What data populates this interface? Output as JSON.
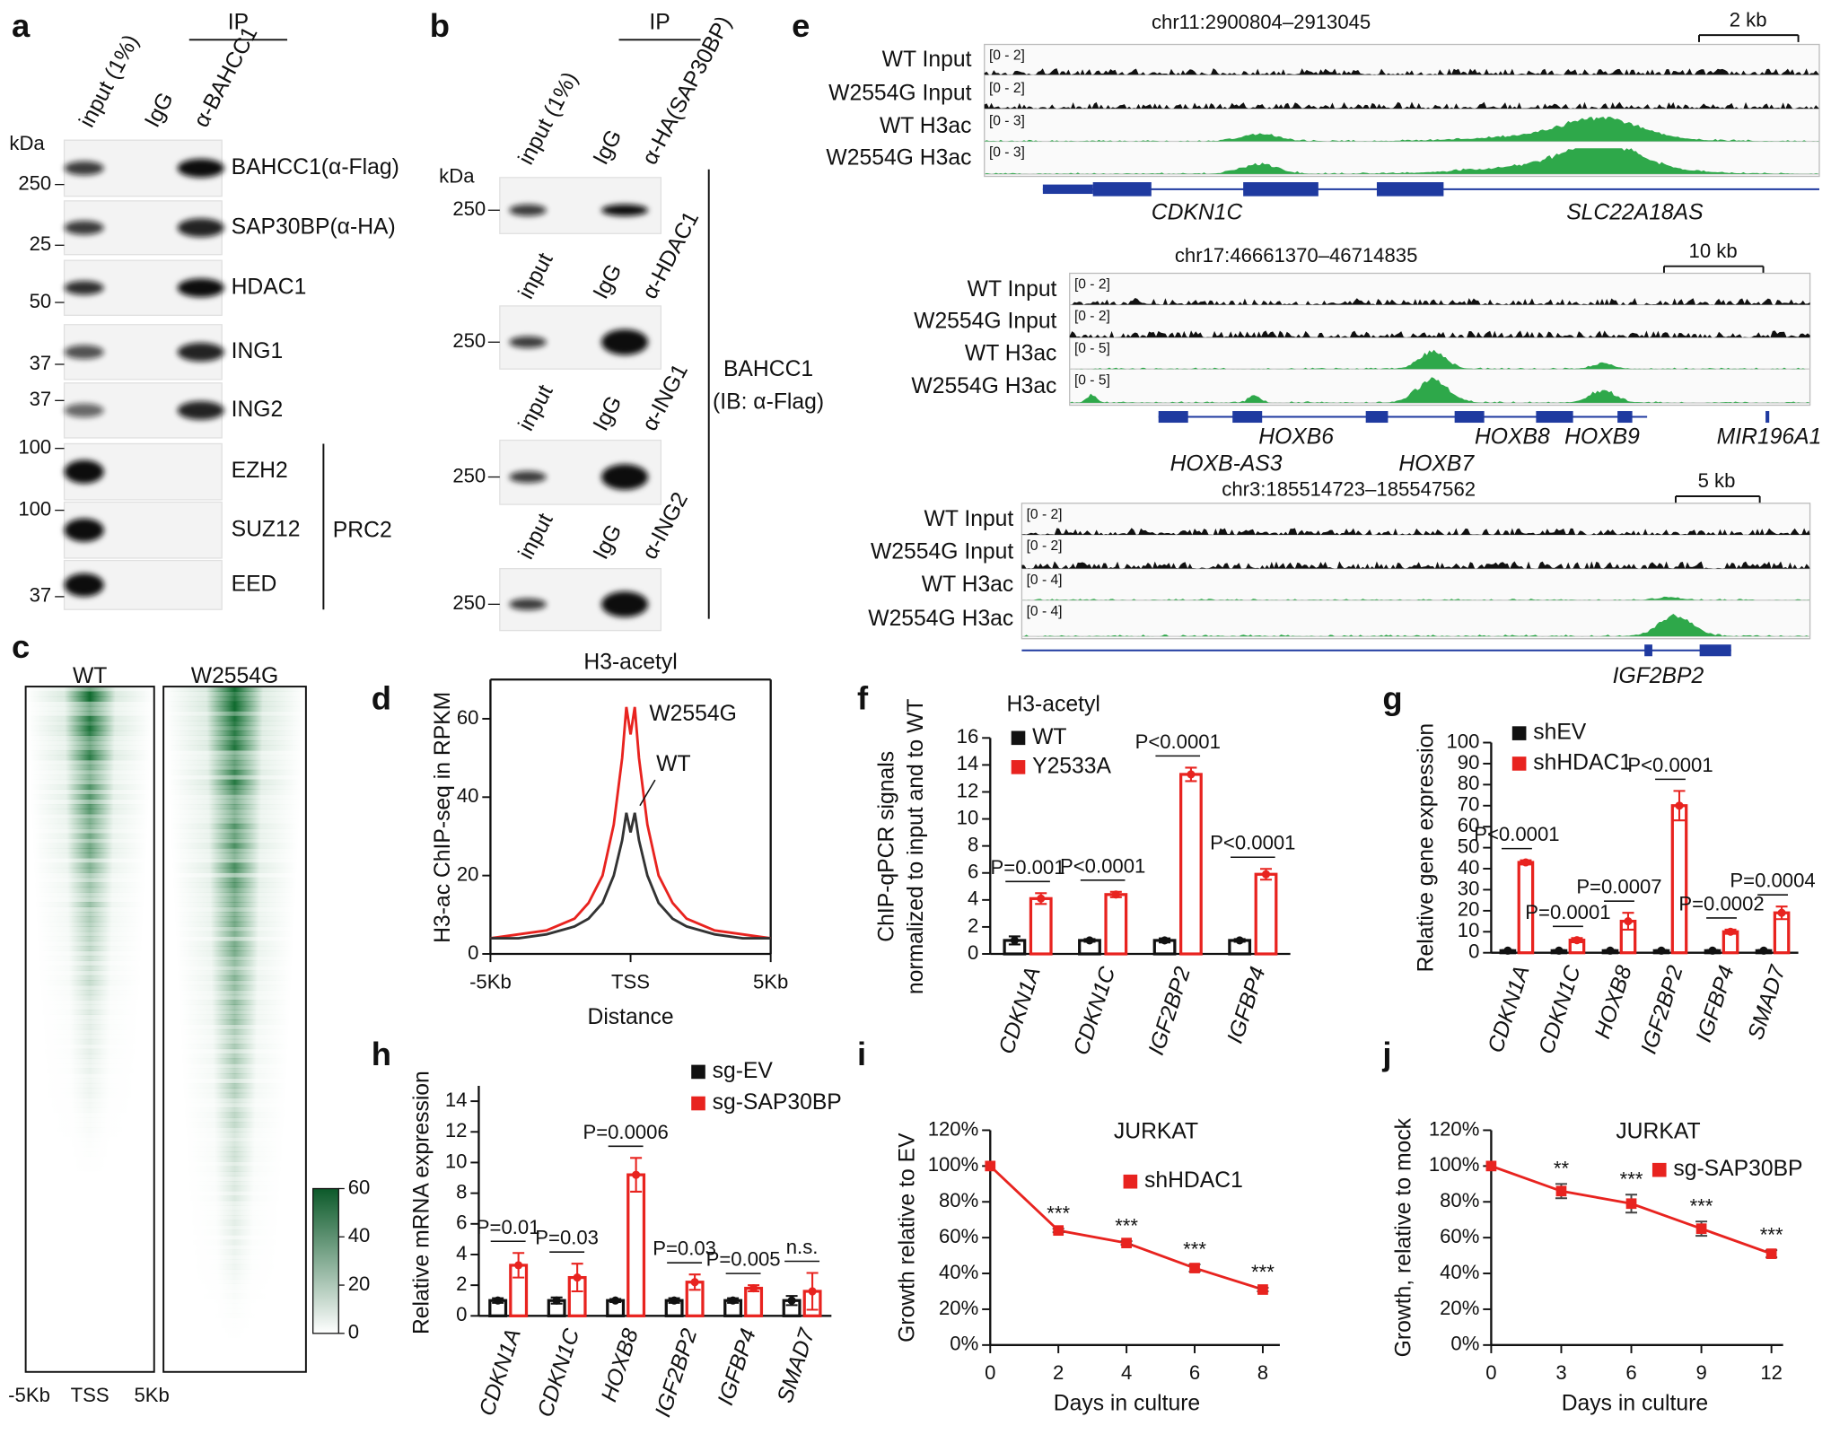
{
  "blot_a": {
    "letter": "a",
    "ip": "IP",
    "kda": "kDa",
    "lanes": [
      "input (1%)",
      "IgG",
      "α-BAHCC1"
    ],
    "rows": [
      {
        "label": "BAHCC1(α-Flag)",
        "marker": 250
      },
      {
        "label": "SAP30BP(α-HA)",
        "marker": 25
      },
      {
        "label": "HDAC1",
        "marker": 50
      },
      {
        "label": "ING1",
        "marker": 37
      },
      {
        "label": "ING2",
        "marker": 37
      },
      {
        "label": "EZH2",
        "marker": 100
      },
      {
        "label": "SUZ12",
        "marker": 100
      },
      {
        "label": "EED",
        "marker": 37
      }
    ],
    "group_label": "PRC2"
  },
  "blot_b": {
    "letter": "b",
    "ip": "IP",
    "kda": "kDa",
    "blots": [
      {
        "lanes": [
          "input (1%)",
          "IgG",
          "α-HA(SAP30BP)"
        ],
        "marker": 250
      },
      {
        "lanes": [
          "input",
          "IgG",
          "α-HDAC1"
        ],
        "marker": 250
      },
      {
        "lanes": [
          "input",
          "IgG",
          "α-ING1"
        ],
        "marker": 250
      },
      {
        "lanes": [
          "input",
          "IgG",
          "α-ING2"
        ],
        "marker": 250
      }
    ],
    "side_label": [
      "BAHCC1",
      "(IB: α-Flag)"
    ]
  },
  "heatmap_c": {
    "letter": "c",
    "columns": [
      "WT",
      "W2554G"
    ],
    "x_labels": [
      "-5Kb",
      "TSS",
      "5Kb"
    ],
    "colorbar_lim": [
      0,
      60
    ],
    "colorbar_ticks": [
      0,
      20,
      40,
      60
    ]
  },
  "tracks_e": {
    "letter": "e",
    "regions": [
      {
        "locus": "chr11:2900804–2913045",
        "scale": "2 kb",
        "tracks": [
          {
            "label": "WT Input",
            "range": "[0 - 2]"
          },
          {
            "label": "W2554G Input",
            "range": "[0 - 2]"
          },
          {
            "label": "WT H3ac",
            "range": "[0 - 3]"
          },
          {
            "label": "W2554G H3ac",
            "range": "[0 - 3]"
          }
        ],
        "genes": [
          "CDKN1C",
          "SLC22A18AS"
        ]
      },
      {
        "locus": "chr17:46661370–46714835",
        "scale": "10 kb",
        "tracks": [
          {
            "label": "WT Input",
            "range": "[0 - 2]"
          },
          {
            "label": "W2554G Input",
            "range": "[0 - 2]"
          },
          {
            "label": "WT H3ac",
            "range": "[0 - 5]"
          },
          {
            "label": "W2554G H3ac",
            "range": "[0 - 5]"
          }
        ],
        "genes": [
          "HOXB6",
          "HOXB-AS3",
          "HOXB7",
          "HOXB8",
          "HOXB9",
          "MIR196A1"
        ]
      },
      {
        "locus": "chr3:185514723–185547562",
        "scale": "5 kb",
        "tracks": [
          {
            "label": "WT Input",
            "range": "[0 - 2]"
          },
          {
            "label": "W2554G Input",
            "range": "[0 - 2]"
          },
          {
            "label": "WT H3ac",
            "range": "[0 - 4]"
          },
          {
            "label": "W2554G H3ac",
            "range": "[0 - 4]"
          }
        ],
        "genes": [
          "IGF2BP2"
        ]
      }
    ]
  },
  "chart_data": [
    {
      "panel": "d",
      "type": "line",
      "title": "H3-acetyl",
      "x_label": "Distance",
      "y_label": "H3-ac ChIP-seq in RPKM",
      "x": [
        -5,
        -4,
        -3,
        -2,
        -1.5,
        -1,
        -0.6,
        -0.3,
        -0.15,
        0,
        0.15,
        0.3,
        0.6,
        1,
        1.5,
        2,
        3,
        4,
        5
      ],
      "series": [
        {
          "name": "W2554G",
          "color": "#e8231f",
          "values": [
            4,
            5,
            6,
            9,
            13,
            20,
            33,
            50,
            63,
            56,
            63,
            50,
            33,
            20,
            13,
            9,
            6,
            5,
            4
          ]
        },
        {
          "name": "WT",
          "color": "#333333",
          "values": [
            4,
            4,
            5,
            7,
            9,
            13,
            20,
            29,
            36,
            31,
            36,
            29,
            20,
            13,
            9,
            7,
            5,
            4,
            4
          ]
        }
      ],
      "xlim": [
        -5,
        5
      ],
      "xticks": [
        {
          "value": -5,
          "label": "-5Kb"
        },
        {
          "value": 0,
          "label": "TSS"
        },
        {
          "value": 5,
          "label": "5Kb"
        }
      ],
      "ylim": [
        0,
        70
      ],
      "yticks": [
        0,
        20,
        40,
        60
      ]
    },
    {
      "panel": "f",
      "type": "bar",
      "title": "H3-acetyl",
      "y_label": [
        "ChIP-qPCR signals",
        "normalized to input and to WT"
      ],
      "categories": [
        "CDKN1A",
        "CDKN1C",
        "IGF2BP2",
        "IGFBP4"
      ],
      "series": [
        {
          "name": "WT",
          "color": "#111111",
          "values": [
            1,
            1,
            1,
            1
          ],
          "errors": [
            0.3,
            0.1,
            0.15,
            0.1
          ]
        },
        {
          "name": "Y2533A",
          "color": "#e8231f",
          "values": [
            4.1,
            4.4,
            13.3,
            5.9
          ],
          "errors": [
            0.4,
            0.2,
            0.5,
            0.4
          ]
        }
      ],
      "annotations": [
        "P=0.001",
        "P<0.0001",
        "P<0.0001",
        "P<0.0001"
      ],
      "ylim": [
        0,
        16
      ],
      "yticks": [
        0,
        2,
        4,
        6,
        8,
        10,
        12,
        14,
        16
      ]
    },
    {
      "panel": "g",
      "type": "bar",
      "y_label": "Relative gene expression",
      "categories": [
        "CDKN1A",
        "CDKN1C",
        "HOXB8",
        "IGF2BP2",
        "IGFBP4",
        "SMAD7"
      ],
      "series": [
        {
          "name": "shEV",
          "color": "#111111",
          "values": [
            1,
            1,
            1,
            1,
            1,
            1
          ],
          "errors": [
            0.3,
            0.3,
            0.3,
            0.3,
            0.3,
            0.3
          ]
        },
        {
          "name": "shHDAC1",
          "color": "#e8231f",
          "values": [
            43,
            6,
            15,
            70,
            10,
            19
          ],
          "errors": [
            1,
            1,
            4,
            7,
            1,
            3
          ]
        }
      ],
      "annotations": [
        "P<0.0001",
        "P=0.0001",
        "P=0.0007",
        "P<0.0001",
        "P=0.0002",
        "P=0.0004"
      ],
      "ylim": [
        0,
        100
      ],
      "yticks": [
        0,
        10,
        20,
        30,
        40,
        50,
        60,
        70,
        80,
        90,
        100
      ]
    },
    {
      "panel": "h",
      "type": "bar",
      "y_label": "Relative mRNA expression",
      "categories": [
        "CDKN1A",
        "CDKN1C",
        "HOXB8",
        "IGF2BP2",
        "IGFBP4",
        "SMAD7"
      ],
      "series": [
        {
          "name": "sg-EV",
          "color": "#111111",
          "values": [
            1,
            1,
            1,
            1,
            1,
            1
          ],
          "errors": [
            0.15,
            0.2,
            0.1,
            0.15,
            0.15,
            0.3
          ]
        },
        {
          "name": "sg-SAP30BP",
          "color": "#e8231f",
          "values": [
            3.3,
            2.5,
            9.2,
            2.2,
            1.8,
            1.6
          ],
          "errors": [
            0.8,
            0.9,
            1.1,
            0.5,
            0.2,
            1.2
          ]
        }
      ],
      "annotations": [
        "P=0.01",
        "P=0.03",
        "P=0.0006",
        "P=0.03",
        "P=0.005",
        "n.s."
      ],
      "ylim": [
        0,
        15
      ],
      "yticks": [
        0,
        2,
        4,
        6,
        8,
        10,
        12,
        14
      ]
    },
    {
      "panel": "i",
      "type": "line",
      "title": "JURKAT",
      "x_label": "Days in culture",
      "y_label": "Growth relative to EV",
      "x": [
        0,
        2,
        4,
        6,
        8
      ],
      "series": [
        {
          "name": "shHDAC1",
          "color": "#e8231f",
          "marker": "square",
          "values": [
            100,
            64,
            57,
            43,
            31
          ],
          "errors": [
            0,
            1,
            1,
            2,
            1
          ]
        }
      ],
      "annotations": [
        null,
        "***",
        "***",
        "***",
        "***"
      ],
      "xlim": [
        0,
        8.5
      ],
      "xticks": [
        0,
        2,
        4,
        6,
        8
      ],
      "ylim": [
        0,
        120
      ],
      "yticks": [
        {
          "value": 0,
          "label": "0%"
        },
        {
          "value": 20,
          "label": "20%"
        },
        {
          "value": 40,
          "label": "40%"
        },
        {
          "value": 60,
          "label": "60%"
        },
        {
          "value": 80,
          "label": "80%"
        },
        {
          "value": 100,
          "label": "100%"
        },
        {
          "value": 120,
          "label": "120%"
        }
      ]
    },
    {
      "panel": "j",
      "type": "line",
      "title": "JURKAT",
      "x_label": "Days in culture",
      "y_label": "Growth, relative to mock",
      "x": [
        0,
        3,
        6,
        9,
        12
      ],
      "series": [
        {
          "name": "sg-SAP30BP",
          "color": "#e8231f",
          "marker": "square",
          "values": [
            100,
            86,
            79,
            65,
            51
          ],
          "errors": [
            0,
            4,
            5,
            4,
            2
          ]
        }
      ],
      "annotations": [
        null,
        "**",
        "***",
        "***",
        "***"
      ],
      "xlim": [
        0,
        12.5
      ],
      "xticks": [
        0,
        3,
        6,
        9,
        12
      ],
      "ylim": [
        0,
        120
      ],
      "yticks": [
        {
          "value": 0,
          "label": "0%"
        },
        {
          "value": 20,
          "label": "20%"
        },
        {
          "value": 40,
          "label": "40%"
        },
        {
          "value": 60,
          "label": "60%"
        },
        {
          "value": 80,
          "label": "80%"
        },
        {
          "value": 100,
          "label": "100%"
        },
        {
          "value": 120,
          "label": "120%"
        }
      ]
    }
  ]
}
